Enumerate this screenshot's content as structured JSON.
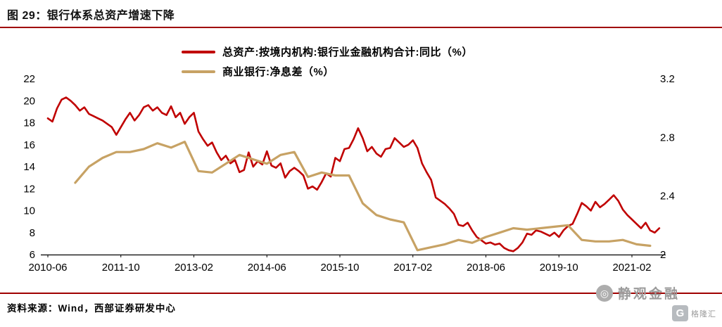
{
  "figure": {
    "title": "图 29：银行体系总资产增速下降",
    "source": "资料来源：Wind，西部证券研发中心"
  },
  "watermark": {
    "name": "静观金融",
    "logo_glyph": "◎",
    "badge_letter": "G",
    "badge_text": "格隆汇"
  },
  "colors": {
    "series_assets": "#C00000",
    "series_nim": "#C7A264",
    "rule": "#A00000",
    "axis": "#000000",
    "watermark": "#9b9b9b"
  },
  "chart_data": {
    "type": "line",
    "title": "",
    "grid": false,
    "legend_position": "top-center",
    "x_start": "2010-06",
    "x_tick_interval_months": 16,
    "x_tick_labels": [
      "2010-06",
      "2011-10",
      "2013-02",
      "2014-06",
      "2015-10",
      "2017-02",
      "2018-06",
      "2019-10",
      "2021-02"
    ],
    "left_axis": {
      "min": 6,
      "max": 22,
      "ticks": [
        6,
        8,
        10,
        12,
        14,
        16,
        18,
        20,
        22
      ]
    },
    "right_axis": {
      "min": 2,
      "max": 3.2,
      "ticks": [
        2,
        2.4,
        2.8,
        3.2
      ]
    },
    "series": [
      {
        "name": "总资产:按境内机构:银行业金融机构合计:同比（%）",
        "axis": "left",
        "color": "#C00000",
        "width": 2.6,
        "start_month_offset": 0,
        "interval_months": 1,
        "values": [
          18.4,
          18.1,
          19.3,
          20.1,
          20.3,
          20.0,
          19.6,
          19.1,
          19.4,
          18.8,
          18.6,
          18.4,
          18.2,
          17.9,
          17.6,
          16.9,
          17.6,
          18.3,
          18.9,
          18.2,
          18.7,
          19.4,
          19.6,
          19.1,
          19.4,
          18.9,
          18.7,
          19.5,
          18.5,
          18.9,
          17.9,
          18.5,
          18.9,
          17.2,
          16.5,
          15.9,
          16.2,
          15.3,
          14.6,
          15.0,
          14.3,
          14.6,
          13.5,
          13.7,
          15.3,
          14.0,
          14.5,
          14.2,
          15.4,
          14.1,
          13.9,
          14.3,
          13.0,
          13.6,
          13.9,
          13.6,
          13.2,
          12.0,
          12.2,
          11.9,
          12.6,
          13.4,
          13.1,
          14.8,
          14.5,
          15.6,
          15.7,
          16.5,
          17.5,
          16.6,
          15.4,
          15.8,
          15.2,
          14.9,
          15.6,
          15.7,
          16.6,
          16.2,
          15.8,
          16.0,
          16.4,
          15.7,
          14.3,
          13.5,
          12.8,
          11.2,
          10.9,
          10.6,
          10.2,
          9.7,
          8.7,
          8.6,
          8.9,
          8.2,
          7.6,
          7.3,
          7.0,
          7.1,
          6.9,
          7.0,
          6.6,
          6.4,
          6.3,
          6.6,
          7.1,
          7.9,
          7.8,
          8.2,
          8.1,
          7.9,
          7.7,
          8.0,
          7.6,
          8.2,
          8.6,
          8.8,
          9.7,
          10.7,
          10.4,
          10.0,
          10.8,
          10.3,
          10.6,
          11.0,
          11.4,
          10.9,
          10.1,
          9.6,
          9.2,
          8.8,
          8.4,
          8.9,
          8.2,
          8.0,
          8.4
        ]
      },
      {
        "name": "商业银行:净息差（%）",
        "axis": "right",
        "color": "#C7A264",
        "width": 3.2,
        "start_month_offset": 6,
        "interval_months": 3,
        "values": [
          2.49,
          2.6,
          2.66,
          2.7,
          2.7,
          2.72,
          2.76,
          2.73,
          2.77,
          2.57,
          2.56,
          2.62,
          2.68,
          2.65,
          2.62,
          2.68,
          2.7,
          2.53,
          2.56,
          2.54,
          2.54,
          2.35,
          2.27,
          2.24,
          2.22,
          2.03,
          2.05,
          2.07,
          2.1,
          2.08,
          2.12,
          2.15,
          2.18,
          2.17,
          2.18,
          2.19,
          2.2,
          2.1,
          2.09,
          2.09,
          2.1,
          2.07,
          2.06
        ]
      }
    ]
  }
}
